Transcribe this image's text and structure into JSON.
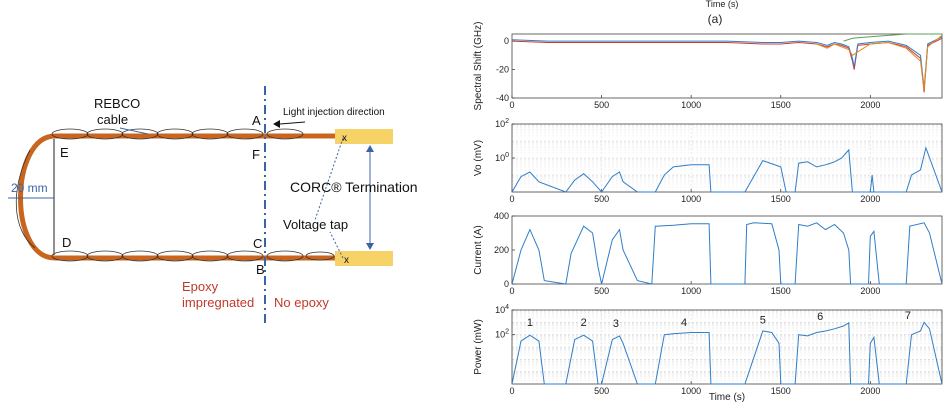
{
  "diagram": {
    "labels": {
      "rebco_cable": [
        "REBCO",
        "cable"
      ],
      "light_direction": "Light injection direction",
      "termination": "CORC® Termination",
      "voltage_tap": "Voltage tap",
      "epoxy": [
        "Epoxy",
        "impregnated"
      ],
      "no_epoxy": "No epoxy",
      "dimension": "20 mm",
      "point_A": "A",
      "point_B": "B",
      "point_C": "C",
      "point_D": "D",
      "point_E": "E",
      "point_F": "F",
      "tap_mark_top": "x",
      "tap_mark_bottom": "x"
    },
    "colors": {
      "cable": "#c9651e",
      "termination": "#f6d267",
      "dashed_line": "#3b64a8",
      "epoxy_text": "#c0392b",
      "label": "#111111"
    }
  },
  "chart_data": [
    {
      "type": "line",
      "panel_label": "(a)",
      "top_xlabel": "Time (s)",
      "ylabel": "Spectral Shift (GHz)",
      "ylim": [
        -40,
        5
      ],
      "xlim": [
        0,
        2400
      ],
      "yticks": [
        "0",
        "-20",
        "-40"
      ],
      "xticks": [
        "0",
        "500",
        "1000",
        "1500",
        "2000"
      ],
      "grid": false,
      "series": [
        {
          "color": "#d9342b",
          "x": [
            0,
            200,
            400,
            600,
            800,
            1000,
            1200,
            1400,
            1500,
            1600,
            1700,
            1760,
            1800,
            1840,
            1880,
            1900,
            1910,
            1930,
            2000,
            2100,
            2200,
            2280,
            2300,
            2320,
            2400
          ],
          "y": [
            0,
            -1,
            -1,
            -1,
            -1,
            -1,
            -1,
            -2,
            -2,
            -1,
            -2,
            -4,
            -2,
            -3,
            -5,
            -14,
            -20,
            -3,
            -2,
            -1,
            -4,
            -12,
            -36,
            -3,
            2
          ]
        },
        {
          "color": "#2f7ec9",
          "x": [
            0,
            200,
            400,
            600,
            800,
            1000,
            1200,
            1400,
            1500,
            1600,
            1700,
            1760,
            1800,
            1840,
            1880,
            1900,
            1910,
            1930,
            2000,
            2100,
            2200,
            2280,
            2300,
            2320,
            2400
          ],
          "y": [
            1,
            0,
            0,
            0,
            0,
            0,
            0,
            -1,
            -1,
            0,
            -1,
            -3,
            -1,
            -2,
            -4,
            -12,
            -18,
            -2,
            -1,
            0,
            -3,
            -10,
            -33,
            -2,
            3
          ]
        },
        {
          "color": "#e08a1e",
          "x": [
            1700,
            1760,
            1800,
            1880,
            1900,
            2000,
            2100,
            2200,
            2280,
            2300,
            2320,
            2400
          ],
          "y": [
            -2,
            -5,
            -2,
            -6,
            -10,
            -2,
            -1,
            -5,
            -14,
            -34,
            -4,
            4
          ]
        },
        {
          "color": "#5aa05a",
          "x": [
            1850,
            1900,
            2000,
            2100,
            2200,
            2300,
            2400
          ],
          "y": [
            0,
            2,
            3,
            4,
            5,
            5,
            5
          ]
        }
      ]
    },
    {
      "type": "line",
      "ylabel": "Vo (mV)",
      "yscale": "log",
      "ylim": [
        0.01,
        100
      ],
      "xlim": [
        0,
        2400
      ],
      "yticks": [
        "10^2",
        "10^0"
      ],
      "xticks": [
        "0",
        "500",
        "1000",
        "1500",
        "2000"
      ],
      "grid": true,
      "series": [
        {
          "color": "#2f7ec9",
          "x": [
            0,
            50,
            100,
            150,
            300,
            350,
            400,
            450,
            500,
            560,
            600,
            620,
            700,
            800,
            850,
            900,
            1000,
            1100,
            1110,
            1300,
            1400,
            1500,
            1530,
            1580,
            1600,
            1650,
            1700,
            1750,
            1780,
            1800,
            1840,
            1880,
            1900,
            1905,
            2000,
            2010,
            2020,
            2040,
            2100,
            2200,
            2230,
            2280,
            2310,
            2400
          ],
          "y": [
            0.01,
            0.08,
            0.15,
            0.04,
            0.01,
            0.05,
            0.12,
            0.04,
            0.01,
            0.08,
            0.15,
            0.04,
            0.01,
            0.01,
            0.1,
            0.3,
            0.4,
            0.4,
            0.01,
            0.01,
            0.7,
            0.3,
            0.01,
            0.01,
            0.5,
            0.6,
            0.3,
            0.4,
            0.5,
            0.6,
            1,
            3,
            0.01,
            0.01,
            0.01,
            0.1,
            0.01,
            0.01,
            0.01,
            0.01,
            0.1,
            0.2,
            4,
            0.01
          ]
        }
      ]
    },
    {
      "type": "line",
      "ylabel": "Current (A)",
      "ylim": [
        0,
        400
      ],
      "xlim": [
        0,
        2400
      ],
      "yticks": [
        "400",
        "200",
        "0"
      ],
      "xticks": [
        "0",
        "500",
        "1000",
        "1500",
        "2000"
      ],
      "grid": false,
      "series": [
        {
          "color": "#2f7ec9",
          "x": [
            0,
            50,
            100,
            150,
            180,
            300,
            330,
            400,
            450,
            480,
            500,
            560,
            600,
            620,
            700,
            780,
            800,
            900,
            1000,
            1100,
            1110,
            1300,
            1310,
            1350,
            1450,
            1490,
            1500,
            1580,
            1600,
            1650,
            1700,
            1750,
            1800,
            1850,
            1880,
            1890,
            1990,
            2000,
            2020,
            2050,
            2100,
            2200,
            2220,
            2300,
            2330,
            2400
          ],
          "y": [
            0,
            200,
            320,
            200,
            20,
            0,
            180,
            340,
            300,
            100,
            0,
            260,
            320,
            200,
            20,
            0,
            340,
            345,
            355,
            355,
            0,
            0,
            350,
            360,
            355,
            200,
            0,
            0,
            350,
            340,
            360,
            320,
            350,
            300,
            200,
            0,
            0,
            280,
            310,
            0,
            0,
            0,
            340,
            360,
            300,
            0
          ]
        }
      ]
    },
    {
      "type": "line",
      "ylabel": "Power (mW)",
      "xlabel": "Time (s)",
      "yscale": "log",
      "ylim": [
        0.01,
        10000
      ],
      "xlim": [
        0,
        2400
      ],
      "yticks": [
        "10^4",
        "10^2"
      ],
      "xticks": [
        "0",
        "500",
        "1000",
        "1500",
        "2000"
      ],
      "grid": true,
      "annotations": [
        {
          "text": "1",
          "x": 100,
          "y": 500
        },
        {
          "text": "2",
          "x": 400,
          "y": 500
        },
        {
          "text": "3",
          "x": 580,
          "y": 400
        },
        {
          "text": "4",
          "x": 960,
          "y": 500
        },
        {
          "text": "5",
          "x": 1400,
          "y": 800
        },
        {
          "text": "6",
          "x": 1720,
          "y": 1500
        },
        {
          "text": "7",
          "x": 2210,
          "y": 1800
        }
      ],
      "series": [
        {
          "color": "#2f7ec9",
          "x": [
            0,
            50,
            100,
            150,
            180,
            300,
            350,
            400,
            450,
            480,
            500,
            560,
            600,
            620,
            700,
            800,
            850,
            900,
            1000,
            1100,
            1110,
            1300,
            1400,
            1450,
            1490,
            1500,
            1580,
            1600,
            1650,
            1700,
            1750,
            1800,
            1850,
            1880,
            1890,
            1990,
            2000,
            2020,
            2050,
            2100,
            2200,
            2230,
            2280,
            2300,
            2330,
            2400
          ],
          "y": [
            0.01,
            30,
            90,
            30,
            0.01,
            0.01,
            40,
            90,
            30,
            0.01,
            0.01,
            40,
            80,
            20,
            0.01,
            0.01,
            100,
            120,
            150,
            150,
            0.01,
            0.01,
            200,
            150,
            20,
            0.01,
            0.01,
            100,
            80,
            150,
            200,
            300,
            500,
            900,
            0.01,
            0.01,
            20,
            60,
            0.01,
            0.01,
            0.01,
            100,
            200,
            1000,
            300,
            0.01
          ]
        }
      ]
    }
  ]
}
